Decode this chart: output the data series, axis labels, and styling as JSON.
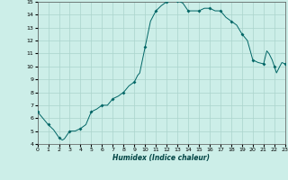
{
  "xlabel": "Humidex (Indice chaleur)",
  "xlim": [
    0,
    23
  ],
  "ylim": [
    4,
    15
  ],
  "yticks": [
    4,
    5,
    6,
    7,
    8,
    9,
    10,
    11,
    12,
    13,
    14,
    15
  ],
  "xticks": [
    0,
    1,
    2,
    3,
    4,
    5,
    6,
    7,
    8,
    9,
    10,
    11,
    12,
    13,
    14,
    15,
    16,
    17,
    18,
    19,
    20,
    21,
    22,
    23
  ],
  "background_color": "#cceee8",
  "grid_color": "#aad4cc",
  "line_color": "#006666",
  "marker_color": "#006666",
  "x": [
    0,
    0.5,
    1,
    1.5,
    2,
    2.3,
    2.5,
    3,
    3.5,
    4,
    4.5,
    5,
    5.5,
    6,
    6.5,
    7,
    7.5,
    8,
    8.5,
    9,
    9.3,
    9.5,
    10,
    10.5,
    11,
    11.5,
    12,
    12.5,
    13,
    13.5,
    14,
    14.5,
    15,
    15.5,
    16,
    16.5,
    17,
    17.5,
    18,
    18.5,
    19,
    19.5,
    20,
    20.5,
    21,
    21.3,
    21.5,
    21.8,
    22,
    22.2,
    22.5,
    22.7,
    23
  ],
  "y": [
    6.5,
    6.0,
    5.5,
    5.1,
    4.5,
    4.3,
    4.4,
    5.0,
    5.0,
    5.2,
    5.5,
    6.5,
    6.7,
    7.0,
    7.0,
    7.5,
    7.7,
    8.0,
    8.5,
    8.8,
    9.3,
    9.5,
    11.5,
    13.5,
    14.3,
    14.7,
    15.0,
    15.2,
    15.1,
    14.9,
    14.3,
    14.3,
    14.3,
    14.5,
    14.5,
    14.3,
    14.3,
    13.8,
    13.5,
    13.2,
    12.5,
    12.0,
    10.5,
    10.3,
    10.2,
    11.2,
    11.0,
    10.5,
    10.0,
    9.5,
    10.0,
    10.3,
    10.2
  ],
  "marker_x": [
    0,
    1,
    2,
    3,
    4,
    5,
    6,
    7,
    8,
    9,
    10,
    11,
    12,
    13,
    14,
    15,
    16,
    17,
    18,
    19,
    20,
    21,
    22,
    23
  ],
  "marker_y": [
    6.5,
    5.5,
    4.5,
    5.0,
    5.2,
    6.5,
    7.0,
    7.5,
    8.0,
    8.8,
    11.5,
    14.3,
    15.0,
    15.1,
    14.3,
    14.3,
    14.5,
    14.3,
    13.5,
    12.5,
    10.5,
    10.2,
    10.0,
    10.2
  ]
}
